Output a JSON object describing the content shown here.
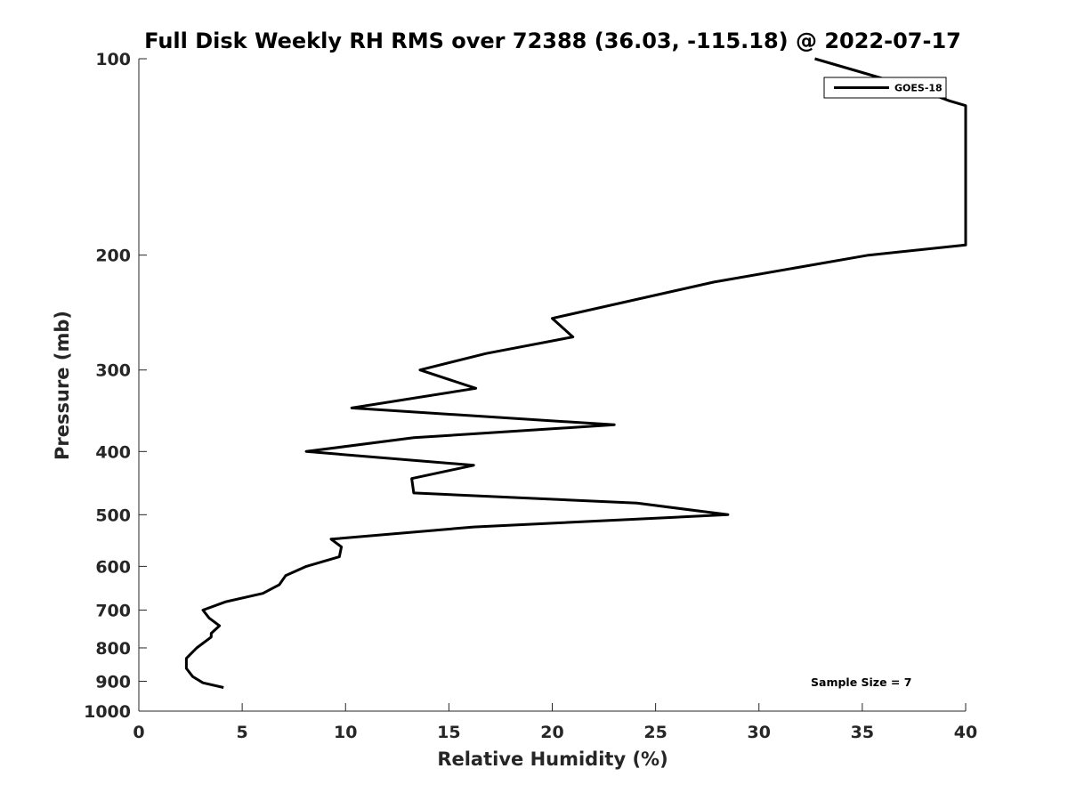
{
  "chart_data": {
    "type": "line",
    "title": "Full Disk Weekly RH RMS over 72388 (36.03, -115.18) @ 2022-07-17",
    "xlabel": "Relative Humidity (%)",
    "ylabel": "Pressure (mb)",
    "xlim": [
      0,
      40
    ],
    "ylim": [
      100,
      1000
    ],
    "y_scale": "log",
    "y_reversed": true,
    "grid": false,
    "x_ticks": [
      0,
      5,
      10,
      15,
      20,
      25,
      30,
      35,
      40
    ],
    "x_tick_labels": [
      "0",
      "5",
      "10",
      "15",
      "20",
      "25",
      "30",
      "35",
      "40"
    ],
    "y_ticks": [
      100,
      200,
      300,
      400,
      500,
      600,
      700,
      800,
      900,
      1000
    ],
    "y_tick_labels": [
      "100",
      "200",
      "300",
      "400",
      "500",
      "600",
      "700",
      "800",
      "900",
      "1000"
    ],
    "legend": {
      "position": "top-right"
    },
    "annotation": "Sample Size = 7",
    "series": [
      {
        "name": "GOES-18",
        "color": "#000000",
        "x": [
          32.7,
          35.0,
          37.6,
          39.2,
          40.0,
          40.0,
          35.3,
          27.8,
          20.0,
          21.0,
          16.8,
          13.6,
          16.3,
          10.3,
          23.0,
          13.3,
          8.1,
          16.2,
          13.2,
          13.3,
          24.1,
          28.5,
          16.2,
          9.3,
          9.8,
          9.7,
          8.1,
          7.1,
          6.8,
          6.0,
          4.2,
          3.1,
          3.4,
          3.9,
          3.5,
          3.5,
          2.8,
          2.3,
          2.3,
          2.6,
          3.1,
          4.1
        ],
        "y": [
          100,
          105,
          111,
          116,
          118,
          193,
          200,
          220,
          250,
          267,
          283,
          300,
          320,
          343,
          364,
          381,
          400,
          420,
          440,
          463,
          480,
          500,
          522,
          545,
          560,
          580,
          600,
          620,
          640,
          660,
          680,
          700,
          720,
          740,
          760,
          770,
          800,
          830,
          860,
          885,
          905,
          920
        ]
      }
    ]
  }
}
